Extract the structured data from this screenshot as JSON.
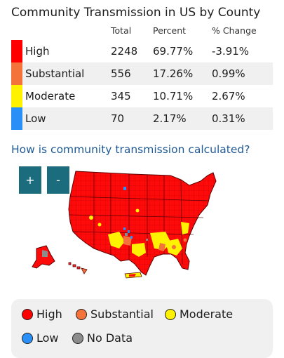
{
  "title": "Community Transmission in US by County",
  "table": {
    "headers": [
      "Total",
      "Percent",
      "% Change"
    ],
    "rows": [
      {
        "label": "High",
        "total": "2248",
        "percent": "69.77%",
        "change": "-3.91%",
        "color": "#ff0000"
      },
      {
        "label": "Substantial",
        "total": "556",
        "percent": "17.26%",
        "change": "0.99%",
        "color": "#f4733a"
      },
      {
        "label": "Moderate",
        "total": "345",
        "percent": "10.71%",
        "change": "2.67%",
        "color": "#fff200"
      },
      {
        "label": "Low",
        "total": "70",
        "percent": "2.17%",
        "change": "0.31%",
        "color": "#2a8ff7"
      }
    ]
  },
  "link_text": "How is community transmission calculated?",
  "zoom": {
    "in_label": "+",
    "out_label": "-"
  },
  "legend": [
    {
      "label": "High",
      "color": "#ff0000"
    },
    {
      "label": "Substantial",
      "color": "#f4733a"
    },
    {
      "label": "Moderate",
      "color": "#fff200"
    },
    {
      "label": "Low",
      "color": "#2a8ff7"
    },
    {
      "label": "No Data",
      "color": "#8c8c8c"
    }
  ]
}
